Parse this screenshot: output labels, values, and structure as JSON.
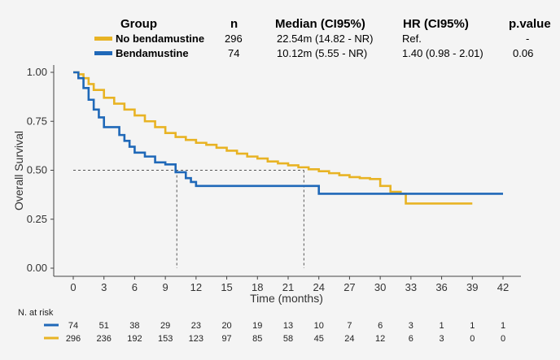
{
  "legend_table": {
    "headers": {
      "group": "Group",
      "n": "n",
      "median": "Median (CI95%)",
      "hr": "HR (CI95%)",
      "pvalue": "p.value"
    },
    "rows": [
      {
        "label": "No bendamustine",
        "n": "296",
        "median": "22.54m (14.82 - NR)",
        "hr": "Ref.",
        "pvalue": "-",
        "color": "#e8b324"
      },
      {
        "label": "Bendamustine",
        "n": "74",
        "median": "10.12m (5.55 - NR)",
        "hr": "1.40 (0.98 - 2.01)",
        "pvalue": "0.06",
        "color": "#1f68b8"
      }
    ]
  },
  "risk_table": {
    "title": "N. at risk",
    "rows": [
      {
        "color": "#1f68b8",
        "counts": [
          "74",
          "51",
          "38",
          "29",
          "23",
          "20",
          "19",
          "13",
          "10",
          "7",
          "6",
          "3",
          "1",
          "1",
          "1"
        ]
      },
      {
        "color": "#e8b324",
        "counts": [
          "296",
          "236",
          "192",
          "153",
          "123",
          "97",
          "85",
          "58",
          "45",
          "24",
          "12",
          "6",
          "3",
          "0",
          "0"
        ]
      }
    ]
  },
  "chart_data": {
    "type": "line",
    "xlabel": "Time (months)",
    "ylabel": "Overall Survival",
    "xlim": [
      0,
      42
    ],
    "ylim": [
      0,
      1
    ],
    "xticks": [
      "0",
      "3",
      "6",
      "9",
      "12",
      "15",
      "18",
      "21",
      "24",
      "27",
      "30",
      "33",
      "36",
      "39",
      "42"
    ],
    "yticks": [
      "0.00",
      "0.25",
      "0.50",
      "0.75",
      "1.00"
    ],
    "grid": false,
    "median_reference": {
      "y": 0.5,
      "x": [
        10.12,
        22.54
      ]
    },
    "series": [
      {
        "name": "No bendamustine",
        "color": "#e8b324",
        "points": [
          [
            0,
            1
          ],
          [
            0.5,
            0.99
          ],
          [
            1,
            0.97
          ],
          [
            1.5,
            0.94
          ],
          [
            2,
            0.91
          ],
          [
            3,
            0.87
          ],
          [
            4,
            0.84
          ],
          [
            5,
            0.81
          ],
          [
            6,
            0.78
          ],
          [
            7,
            0.75
          ],
          [
            8,
            0.72
          ],
          [
            9,
            0.69
          ],
          [
            10,
            0.67
          ],
          [
            11,
            0.655
          ],
          [
            12,
            0.64
          ],
          [
            13,
            0.63
          ],
          [
            14,
            0.615
          ],
          [
            15,
            0.6
          ],
          [
            16,
            0.585
          ],
          [
            17,
            0.57
          ],
          [
            18,
            0.56
          ],
          [
            19,
            0.545
          ],
          [
            20,
            0.535
          ],
          [
            21,
            0.525
          ],
          [
            22,
            0.515
          ],
          [
            23,
            0.505
          ],
          [
            24,
            0.495
          ],
          [
            25,
            0.485
          ],
          [
            26,
            0.475
          ],
          [
            27,
            0.465
          ],
          [
            28,
            0.46
          ],
          [
            29,
            0.455
          ],
          [
            30,
            0.42
          ],
          [
            31,
            0.39
          ],
          [
            32,
            0.38
          ],
          [
            32.5,
            0.33
          ],
          [
            33,
            0.33
          ],
          [
            39,
            0.33
          ]
        ]
      },
      {
        "name": "Bendamustine",
        "color": "#1f68b8",
        "points": [
          [
            0,
            1
          ],
          [
            0.5,
            0.97
          ],
          [
            1,
            0.92
          ],
          [
            1.5,
            0.86
          ],
          [
            2,
            0.81
          ],
          [
            2.5,
            0.77
          ],
          [
            3,
            0.72
          ],
          [
            4.5,
            0.68
          ],
          [
            5,
            0.65
          ],
          [
            5.5,
            0.62
          ],
          [
            6,
            0.59
          ],
          [
            7,
            0.57
          ],
          [
            8,
            0.54
          ],
          [
            9,
            0.53
          ],
          [
            10,
            0.49
          ],
          [
            11,
            0.46
          ],
          [
            11.5,
            0.44
          ],
          [
            12,
            0.42
          ],
          [
            18,
            0.42
          ],
          [
            21,
            0.42
          ],
          [
            24,
            0.38
          ],
          [
            30,
            0.38
          ],
          [
            42,
            0.38
          ]
        ]
      }
    ]
  }
}
